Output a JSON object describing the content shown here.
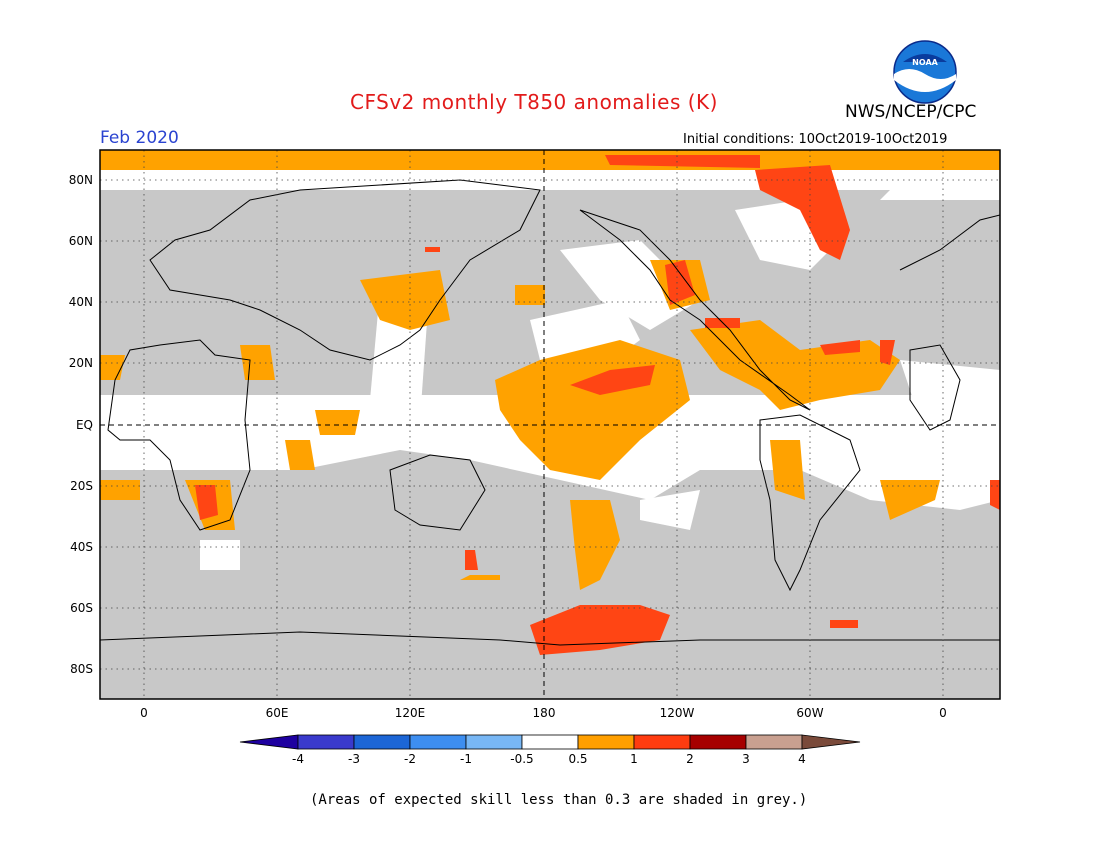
{
  "title": "CFSv2 monthly T850 anomalies (K)",
  "agency": "NWS/NCEP/CPC",
  "logo_text": "NOAA",
  "valid_month": "Feb 2020",
  "initial_conditions": "Initial conditions: 10Oct2019-10Oct2019",
  "footnote": "(Areas of expected skill less than 0.3 are shaded in grey.)",
  "lat_labels": [
    "80N",
    "60N",
    "40N",
    "20N",
    "EQ",
    "20S",
    "40S",
    "60S",
    "80S"
  ],
  "lon_labels": [
    "0",
    "60E",
    "120E",
    "180",
    "120W",
    "60W",
    "0"
  ],
  "colorbar": {
    "labels": [
      "-4",
      "-3",
      "-2",
      "-1",
      "-0.5",
      "0.5",
      "1",
      "2",
      "3",
      "4"
    ],
    "colors": [
      "#1e00a0",
      "#3a3acc",
      "#1c66d6",
      "#3d8ef0",
      "#78b7f5",
      "#ffffff",
      "#ff9f00",
      "#ff3c10",
      "#a60000",
      "#c9a090",
      "#7a4a3a"
    ]
  },
  "shading": {
    "grey": "#c8c8c8",
    "white": "#ffffff",
    "orange": "#ffa200",
    "red": "#ff4514"
  }
}
